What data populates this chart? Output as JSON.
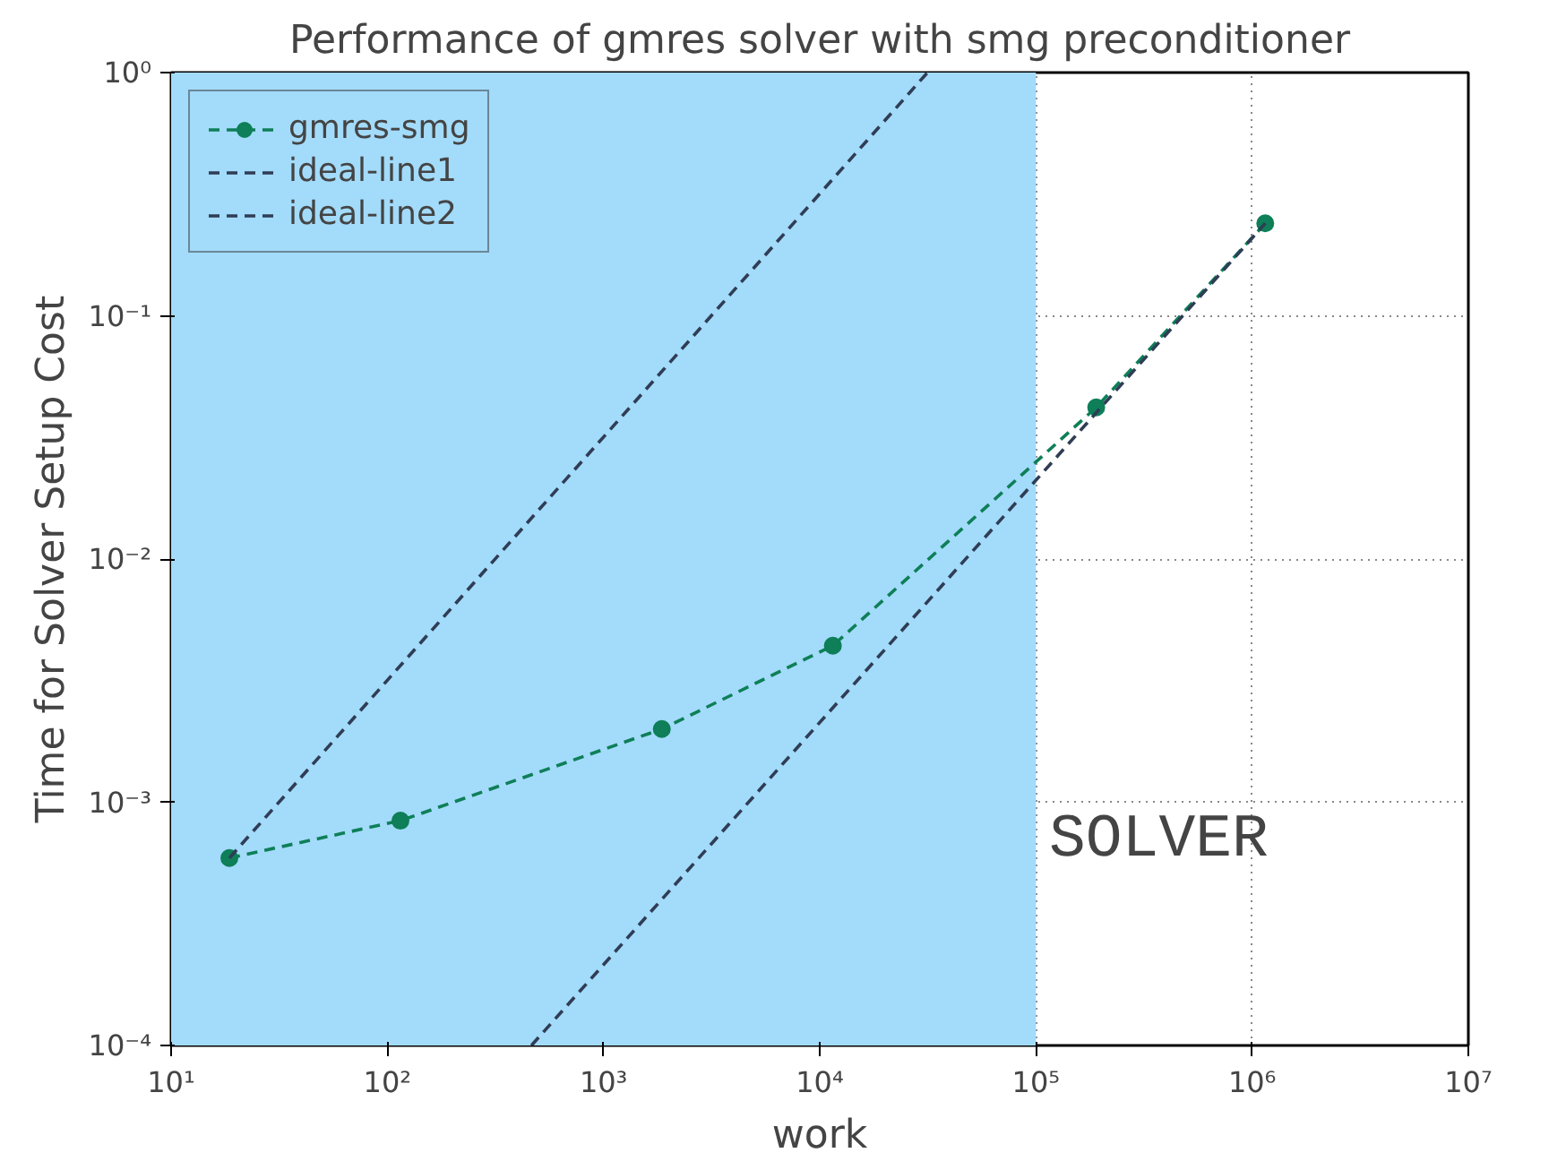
{
  "chart_data": {
    "type": "line",
    "title": "Performance of gmres solver with smg preconditioner",
    "xlabel": "work",
    "ylabel": "Time for Solver Setup Cost",
    "log": "xy",
    "grid": true,
    "legend": "top left",
    "xlim": [
      10,
      10000000
    ],
    "ylim": [
      0.0001,
      1
    ],
    "xticks": [
      {
        "value": 10,
        "label": "10¹"
      },
      {
        "value": 100,
        "label": "10²"
      },
      {
        "value": 1000,
        "label": "10³"
      },
      {
        "value": 10000,
        "label": "10⁴"
      },
      {
        "value": 100000,
        "label": "10⁵"
      },
      {
        "value": 1000000,
        "label": "10⁶"
      },
      {
        "value": 10000000,
        "label": "10⁷"
      }
    ],
    "yticks": [
      {
        "value": 0.0001,
        "label": "10⁻⁴"
      },
      {
        "value": 0.001,
        "label": "10⁻³"
      },
      {
        "value": 0.01,
        "label": "10⁻²"
      },
      {
        "value": 0.1,
        "label": "10⁻¹"
      },
      {
        "value": 1,
        "label": "10⁰"
      }
    ],
    "series": [
      {
        "name": "gmres-smg",
        "color": "#0e7f58",
        "marker": "circle",
        "line_style": "dashed",
        "x": [
          18.6,
          115,
          1860,
          11500,
          190000,
          1150000
        ],
        "values": [
          0.00059,
          0.00084,
          0.002,
          0.0044,
          0.042,
          0.24
        ]
      },
      {
        "name": "ideal-line1",
        "color": "#2f3d55",
        "marker": "none",
        "line_style": "dashed",
        "x": [
          18.6,
          31500
        ],
        "values": [
          0.00059,
          1.0
        ]
      },
      {
        "name": "ideal-line2",
        "color": "#2f3d55",
        "marker": "none",
        "line_style": "dashed",
        "x": [
          464,
          1150000
        ],
        "values": [
          0.0001,
          0.24
        ]
      }
    ],
    "bands": [
      {
        "axis": "x",
        "from": 10,
        "to": 100000,
        "color": "#a3dbfa"
      }
    ],
    "annotations": [
      "SOLVER"
    ]
  }
}
